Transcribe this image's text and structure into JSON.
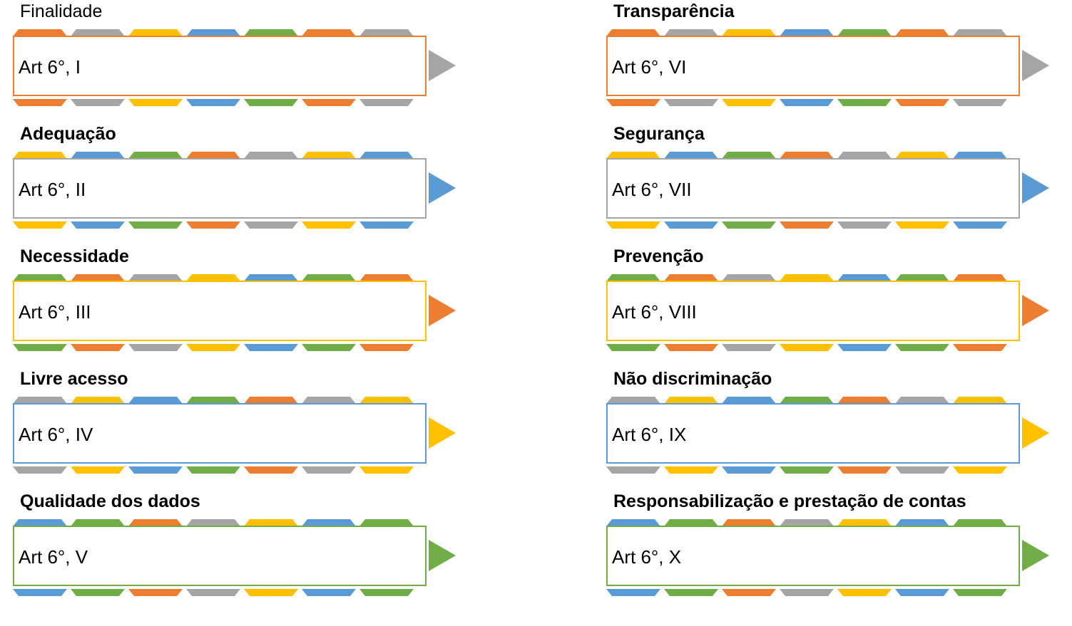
{
  "colors": {
    "orange": "#ed7d31",
    "gray": "#a5a5a5",
    "yellow": "#ffc000",
    "blue": "#5b9bd5",
    "green": "#70ad47"
  },
  "principles": [
    {
      "title": "Finalidade",
      "ref": "Art 6°, I",
      "border": "orange",
      "arrow": "gray",
      "top": [
        "orange",
        "gray",
        "yellow",
        "blue",
        "green",
        "orange",
        "gray"
      ],
      "bottom": [
        "orange",
        "gray",
        "yellow",
        "blue",
        "green",
        "orange",
        "gray"
      ]
    },
    {
      "title": "Adequação",
      "ref": "Art 6°, II",
      "border": "gray",
      "arrow": "blue",
      "top": [
        "yellow",
        "blue",
        "green",
        "orange",
        "gray",
        "yellow",
        "blue"
      ],
      "bottom": [
        "yellow",
        "blue",
        "green",
        "orange",
        "gray",
        "yellow",
        "blue"
      ]
    },
    {
      "title": "Necessidade",
      "ref": "Art 6°, III",
      "border": "yellow",
      "arrow": "orange",
      "top": [
        "green",
        "orange",
        "gray",
        "yellow",
        "blue",
        "green",
        "orange"
      ],
      "bottom": [
        "green",
        "orange",
        "gray",
        "yellow",
        "blue",
        "green",
        "orange"
      ]
    },
    {
      "title": "Livre acesso",
      "ref": "Art 6°, IV",
      "border": "blue",
      "arrow": "yellow",
      "top": [
        "gray",
        "yellow",
        "blue",
        "green",
        "orange",
        "gray",
        "yellow"
      ],
      "bottom": [
        "gray",
        "yellow",
        "blue",
        "green",
        "orange",
        "gray",
        "yellow"
      ]
    },
    {
      "title": "Qualidade dos dados",
      "ref": "Art 6°, V",
      "border": "green",
      "arrow": "green",
      "top": [
        "blue",
        "green",
        "orange",
        "gray",
        "yellow",
        "blue",
        "green"
      ],
      "bottom": [
        "blue",
        "green",
        "orange",
        "gray",
        "yellow",
        "blue",
        "green"
      ]
    },
    {
      "title": "Transparência",
      "ref": "Art 6°, VI",
      "border": "orange",
      "arrow": "gray",
      "top": [
        "orange",
        "gray",
        "yellow",
        "blue",
        "green",
        "orange",
        "gray"
      ],
      "bottom": [
        "orange",
        "gray",
        "yellow",
        "blue",
        "green",
        "orange",
        "gray"
      ]
    },
    {
      "title": "Segurança",
      "ref": "Art 6°, VII",
      "border": "gray",
      "arrow": "blue",
      "top": [
        "yellow",
        "blue",
        "green",
        "orange",
        "gray",
        "yellow",
        "blue"
      ],
      "bottom": [
        "yellow",
        "blue",
        "green",
        "orange",
        "gray",
        "yellow",
        "blue"
      ]
    },
    {
      "title": "Prevenção",
      "ref": "Art 6°, VIII",
      "border": "yellow",
      "arrow": "orange",
      "top": [
        "green",
        "orange",
        "gray",
        "yellow",
        "blue",
        "green",
        "orange"
      ],
      "bottom": [
        "green",
        "orange",
        "gray",
        "yellow",
        "blue",
        "green",
        "orange"
      ]
    },
    {
      "title": "Não discriminação",
      "ref": "Art 6°, IX",
      "border": "blue",
      "arrow": "yellow",
      "top": [
        "gray",
        "yellow",
        "blue",
        "green",
        "orange",
        "gray",
        "yellow"
      ],
      "bottom": [
        "gray",
        "yellow",
        "blue",
        "green",
        "orange",
        "gray",
        "yellow"
      ]
    },
    {
      "title": "Responsabilização e prestação de contas",
      "ref": "Art 6°, X",
      "border": "green",
      "arrow": "green",
      "top": [
        "blue",
        "green",
        "orange",
        "gray",
        "yellow",
        "blue",
        "green"
      ],
      "bottom": [
        "blue",
        "green",
        "orange",
        "gray",
        "yellow",
        "blue",
        "green"
      ]
    }
  ]
}
